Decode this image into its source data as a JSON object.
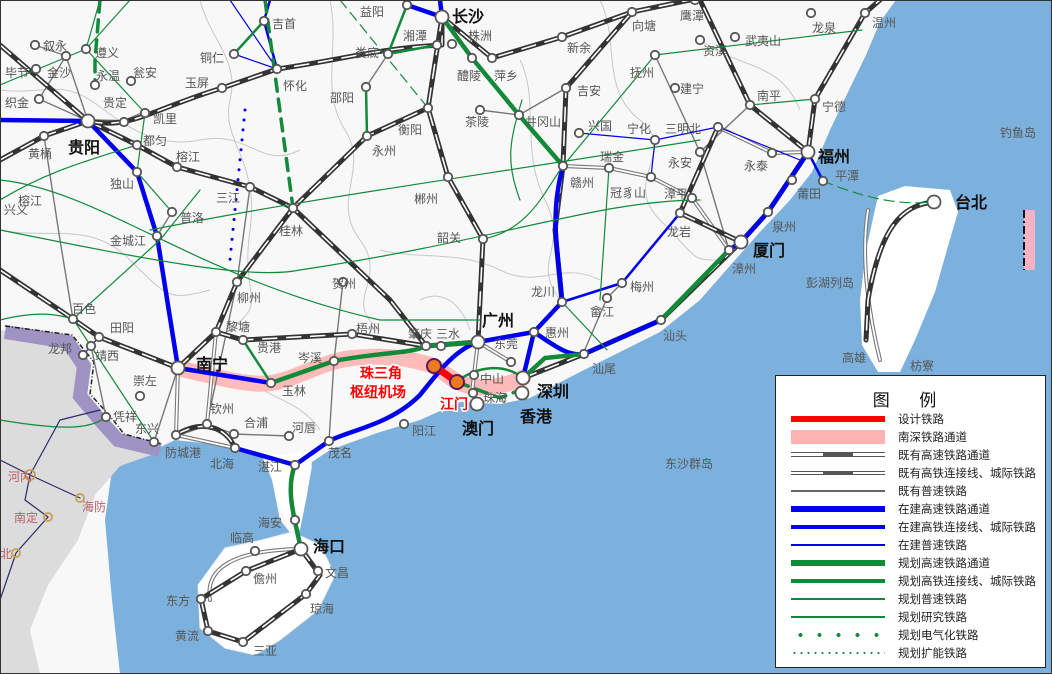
{
  "colors": {
    "sea": "#7cb1dd",
    "land": "#f8f8f8",
    "vietnam": "#dcdcdc",
    "border_band": "#9e93c2",
    "designed": "#ff0000",
    "corridor": "#ffb3b3",
    "existing": "#333333",
    "construction": "#0000ee",
    "planned": "#138a3a"
  },
  "major_cities": [
    "贵阳",
    "长沙",
    "广州",
    "南宁",
    "福州",
    "厦门",
    "台北",
    "海口",
    "深圳",
    "香港",
    "澳门"
  ],
  "hub_stations": [
    "珠三角",
    "枢纽机场",
    "江门"
  ],
  "stations": [
    "益阳",
    "湘潭",
    "株洲",
    "娄底",
    "醴陵",
    "萍乡",
    "新余",
    "向塘",
    "鹰潭",
    "吉首",
    "铜仁",
    "怀化",
    "邵阳",
    "衡阳",
    "永州",
    "茶陵",
    "井冈山",
    "吉安",
    "抚州",
    "资溪",
    "武夷山",
    "龙泉",
    "温州",
    "建宁",
    "兴国",
    "宁化",
    "三明北",
    "南平",
    "宁德",
    "瑞金",
    "永安",
    "永泰",
    "赣州",
    "冠豸山",
    "漳平",
    "龙岩",
    "莆田",
    "平潭",
    "泉州",
    "漳州",
    "郴州",
    "韶关",
    "龙川",
    "梅州",
    "畲江",
    "汕头",
    "汕尾",
    "惠州",
    "东莞",
    "中山",
    "珠海",
    "阳江",
    "肇庆",
    "三水",
    "梧州",
    "贺州",
    "桂林",
    "三江",
    "柳州",
    "黎塘",
    "贵港",
    "岑溪",
    "玉林",
    "钦州",
    "合浦",
    "河唇",
    "茂名",
    "湛江",
    "防城港",
    "北海",
    "东兴",
    "凭祥",
    "崇左",
    "龙邦",
    "靖西",
    "田阳",
    "百色",
    "普洛",
    "金城江",
    "独山",
    "榕江",
    "都匀",
    "凯里",
    "贵定",
    "瓮安",
    "永温",
    "遵义",
    "叙永",
    "金沙",
    "毕节",
    "织金",
    "黄桶",
    "玉屏",
    "海安",
    "临高",
    "儋州",
    "文昌",
    "东方",
    "琼海",
    "黄流",
    "三亚",
    "榕江",
    "兴义"
  ],
  "places": [
    "钓鱼岛",
    "彭湖列岛",
    "高雄",
    "枋寮",
    "东沙群岛"
  ],
  "vietnam": [
    "河内",
    "海防",
    "南定",
    "北"
  ],
  "legend": {
    "title": "图 例",
    "items": [
      {
        "label": "设计铁路",
        "style": "designed"
      },
      {
        "label": "南深铁路通道",
        "style": "corridor"
      },
      {
        "label": "既有高速铁路通道",
        "style": "existing-hsr"
      },
      {
        "label": "既有高铁连接线、城际铁路",
        "style": "existing-link"
      },
      {
        "label": "既有普速铁路",
        "style": "existing-normal"
      },
      {
        "label": "在建高速铁路通道",
        "style": "construction-hsr"
      },
      {
        "label": "在建高铁连接线、城际铁路",
        "style": "construction-link"
      },
      {
        "label": "在建普速铁路",
        "style": "construction-normal"
      },
      {
        "label": "规划高速铁路通道",
        "style": "planned-hsr"
      },
      {
        "label": "规划高铁连接线、城际铁路",
        "style": "planned-link"
      },
      {
        "label": "规划普速铁路",
        "style": "planned-normal"
      },
      {
        "label": "规划研究铁路",
        "style": "planned-study"
      },
      {
        "label": "规划电气化铁路",
        "style": "planned-electrify"
      },
      {
        "label": "规划扩能铁路",
        "style": "planned-expand"
      }
    ]
  }
}
